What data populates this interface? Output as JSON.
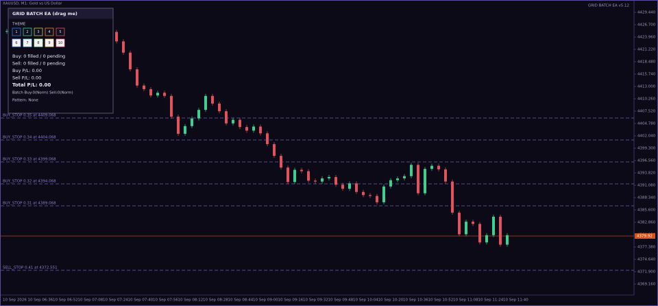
{
  "header": {
    "symbol": "XAUUSD, M1: Gold vs US Dollar",
    "ea_name": "GRID BATCH EA v5.12"
  },
  "panel": {
    "title": "GRID BATCH EA  (drag me)",
    "theme_label": "THEME",
    "theme_buttons": [
      "1",
      "2",
      "3",
      "4",
      "5",
      "6",
      "7",
      "8",
      "9",
      "10"
    ],
    "lines": [
      "Buy: 0 filled / 0 pending",
      "Sell: 0 filled / 0 pending",
      "Buy P/L: 0.00",
      "Sell P/L: 0.00"
    ],
    "total": "Total P/L: 0.00",
    "batch": "Batch Buy:0(Norm)  Sell:0(Norm)",
    "pattern": "Pattern: None"
  },
  "order_lines": [
    "BUY_STOP 0.35 at 4409.068",
    "BUY_STOP 0.34 at 4404.068",
    "BUY_STOP 0.33 at 4399.068",
    "BUY_STOP 0.32 at 4394.068",
    "BUY_STOP 0.31 at 4389.068",
    "SELL_STOP 0.41 at 4372.551"
  ],
  "price_axis": [
    "4429.440",
    "4426.700",
    "4423.960",
    "4421.220",
    "4418.480",
    "4415.740",
    "4413.000",
    "4410.260",
    "4407.520",
    "4404.780",
    "4402.040",
    "4399.300",
    "4396.560",
    "4393.820",
    "4391.080",
    "4388.340",
    "4385.600",
    "4382.860",
    "4380.120",
    "4377.380",
    "4374.640",
    "4371.900",
    "4369.160"
  ],
  "current_price": "4379.92",
  "time_axis": [
    "10 Sep 2026",
    "10 Sep 06:36",
    "10 Sep 06:52",
    "10 Sep 07:08",
    "10 Sep 07:24",
    "10 Sep 07:40",
    "10 Sep 07:56",
    "10 Sep 08:12",
    "10 Sep 08:28",
    "10 Sep 08:44",
    "10 Sep 09:00",
    "10 Sep 09:16",
    "10 Sep 09:32",
    "10 Sep 09:48",
    "10 Sep 10:04",
    "10 Sep 10:20",
    "10 Sep 10:36",
    "10 Sep 10:52",
    "10 Sep 11:08",
    "10 Sep 11:24",
    "10 Sep 11:40"
  ],
  "candles": {
    "closes": [
      4425.3,
      4426.1,
      4424.8,
      4425.9,
      4426.5,
      4425.2,
      4424.6,
      4425.7,
      4426.2,
      4425.0,
      4424.4,
      4425.6,
      4424.9,
      4423.8,
      4424.7,
      4425.1,
      4423.0,
      4420.5,
      4416.8,
      4413.2,
      4412.4,
      4411.0,
      4411.6,
      4410.9,
      4406.3,
      4402.5,
      4404.2,
      4405.9,
      4407.8,
      4410.9,
      4409.2,
      4407.5,
      4404.8,
      4405.6,
      4404.0,
      4403.2,
      4404.1,
      4402.6,
      4400.2,
      4397.6,
      4395.0,
      4391.8,
      4394.5,
      4394.2,
      4392.1,
      4391.9,
      4392.6,
      4392.9,
      4391.2,
      4390.3,
      4391.5,
      4389.6,
      4388.9,
      4388.7,
      4387.3,
      4390.8,
      4392.2,
      4392.6,
      4393.1,
      4395.6,
      4389.3,
      4394.7,
      4395.4,
      4394.6,
      4391.9,
      4385.0,
      4380.2,
      4383.0,
      4382.5,
      4378.4,
      4380.0,
      4384.1,
      4377.9,
      4380.0
    ]
  }
}
